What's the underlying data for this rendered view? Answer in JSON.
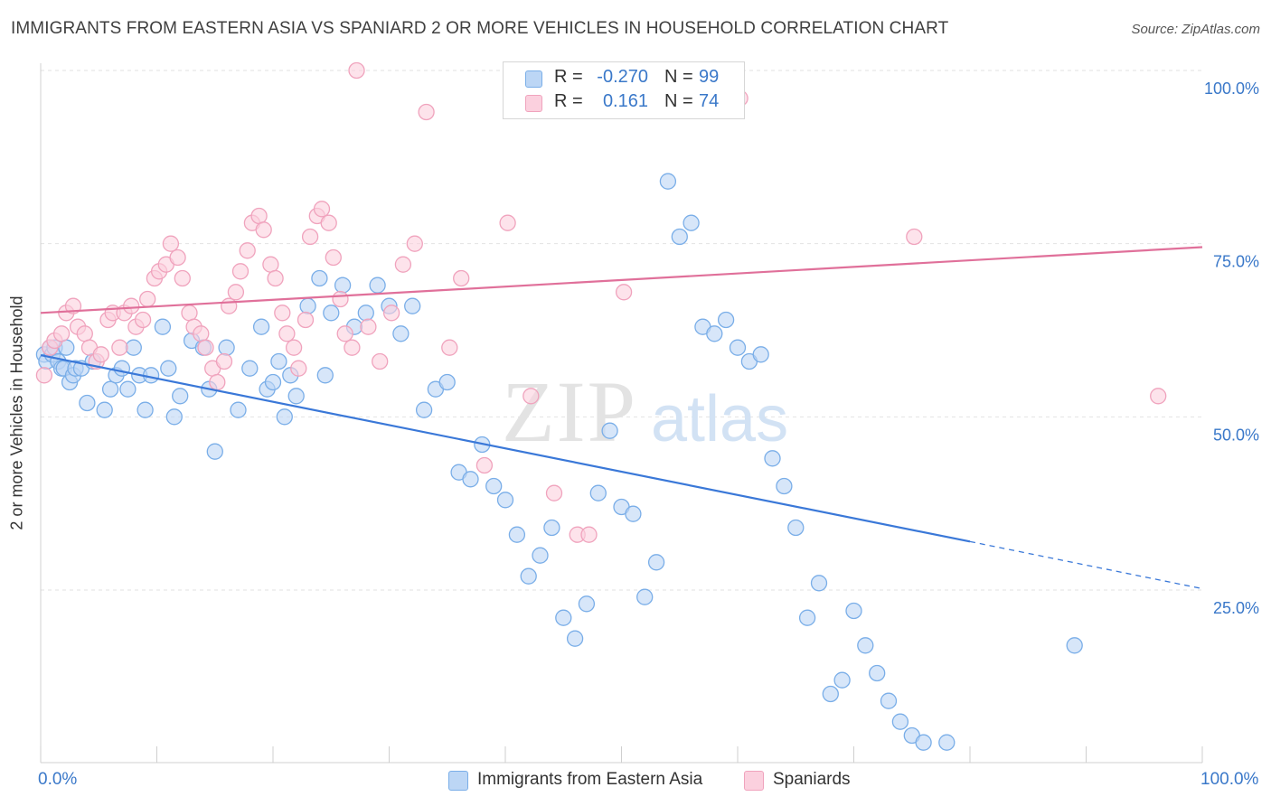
{
  "title": "IMMIGRANTS FROM EASTERN ASIA VS SPANIARD 2 OR MORE VEHICLES IN HOUSEHOLD CORRELATION CHART",
  "source": "Source: ZipAtlas.com",
  "watermark": {
    "zip": "ZIP",
    "atlas": "atlas"
  },
  "legend": {
    "rows": [
      {
        "r_label": "R =",
        "r_value": "-0.270",
        "n_label": "N =",
        "n_value": "99",
        "color": "#7aaee8",
        "fill": "#bcd6f5"
      },
      {
        "r_label": "R =",
        "r_value": "0.161",
        "n_label": "N =",
        "n_value": "74",
        "color": "#f0a3bd",
        "fill": "#fbd0de"
      }
    ]
  },
  "bottom_legend": [
    {
      "label": "Immigrants from Eastern Asia",
      "color": "#7aaee8",
      "fill": "#bcd6f5"
    },
    {
      "label": "Spaniards",
      "color": "#f0a3bd",
      "fill": "#fbd0de"
    }
  ],
  "x_labels": {
    "left": "0.0%",
    "right": "100.0%"
  },
  "chart_data": {
    "type": "scatter",
    "ylabel": "2 or more Vehicles in Household",
    "xlabel": "",
    "xlim": [
      0,
      100
    ],
    "ylim": [
      0,
      102
    ],
    "y_ticks": [
      {
        "value": 25,
        "label": "25.0%"
      },
      {
        "value": 50,
        "label": "50.0%"
      },
      {
        "value": 75,
        "label": "75.0%"
      },
      {
        "value": 100,
        "label": "100.0%"
      }
    ],
    "grid": true,
    "legend_position": "top-center",
    "series": [
      {
        "name": "Immigrants from Eastern Asia",
        "color": "#3a78d8",
        "marker_fill": "#bcd6f5",
        "marker_stroke": "#7aaee8",
        "trend": {
          "x0": 0,
          "y0": 58.9,
          "x1": 80,
          "y1": 32.0,
          "dashed_to": 100,
          "dashed_y": 25.2
        },
        "points": [
          [
            0.3,
            59
          ],
          [
            0.5,
            58
          ],
          [
            0.8,
            60
          ],
          [
            1.0,
            59
          ],
          [
            1.2,
            60
          ],
          [
            1.5,
            58
          ],
          [
            1.8,
            57
          ],
          [
            2.0,
            57
          ],
          [
            2.2,
            60
          ],
          [
            2.5,
            55
          ],
          [
            2.8,
            56
          ],
          [
            3.0,
            57
          ],
          [
            3.5,
            57
          ],
          [
            4.0,
            52
          ],
          [
            4.5,
            58
          ],
          [
            5.5,
            51
          ],
          [
            6.0,
            54
          ],
          [
            6.5,
            56
          ],
          [
            7.0,
            57
          ],
          [
            7.5,
            54
          ],
          [
            8.0,
            60
          ],
          [
            8.5,
            56
          ],
          [
            9.0,
            51
          ],
          [
            9.5,
            56
          ],
          [
            10.5,
            63
          ],
          [
            11,
            57
          ],
          [
            11.5,
            50
          ],
          [
            12,
            53
          ],
          [
            13,
            61
          ],
          [
            14,
            60
          ],
          [
            14.5,
            54
          ],
          [
            15,
            45
          ],
          [
            16,
            60
          ],
          [
            17,
            51
          ],
          [
            18,
            57
          ],
          [
            19,
            63
          ],
          [
            19.5,
            54
          ],
          [
            20,
            55
          ],
          [
            20.5,
            58
          ],
          [
            21,
            50
          ],
          [
            21.5,
            56
          ],
          [
            22,
            53
          ],
          [
            23,
            66
          ],
          [
            24,
            70
          ],
          [
            24.5,
            56
          ],
          [
            25,
            65
          ],
          [
            26,
            69
          ],
          [
            27,
            63
          ],
          [
            28,
            65
          ],
          [
            29,
            69
          ],
          [
            30,
            66
          ],
          [
            31,
            62
          ],
          [
            32,
            66
          ],
          [
            33,
            51
          ],
          [
            34,
            54
          ],
          [
            35,
            55
          ],
          [
            36,
            42
          ],
          [
            37,
            41
          ],
          [
            38,
            46
          ],
          [
            39,
            40
          ],
          [
            40,
            38
          ],
          [
            41,
            33
          ],
          [
            42,
            27
          ],
          [
            43,
            30
          ],
          [
            44,
            34
          ],
          [
            45,
            21
          ],
          [
            46,
            18
          ],
          [
            47,
            23
          ],
          [
            48,
            39
          ],
          [
            49,
            48
          ],
          [
            50,
            37
          ],
          [
            51,
            36
          ],
          [
            52,
            24
          ],
          [
            53,
            29
          ],
          [
            54,
            84
          ],
          [
            55,
            76
          ],
          [
            56,
            78
          ],
          [
            57,
            63
          ],
          [
            58,
            62
          ],
          [
            59,
            64
          ],
          [
            60,
            60
          ],
          [
            61,
            58
          ],
          [
            62,
            59
          ],
          [
            63,
            44
          ],
          [
            64,
            40
          ],
          [
            65,
            34
          ],
          [
            66,
            21
          ],
          [
            67,
            26
          ],
          [
            68,
            10
          ],
          [
            69,
            12
          ],
          [
            70,
            22
          ],
          [
            71,
            17
          ],
          [
            72,
            13
          ],
          [
            73,
            9
          ],
          [
            74,
            6
          ],
          [
            75,
            4
          ],
          [
            76,
            3
          ],
          [
            78,
            3
          ],
          [
            89,
            17
          ]
        ]
      },
      {
        "name": "Spaniards",
        "color": "#e0709a",
        "marker_fill": "#fbd0de",
        "marker_stroke": "#f0a3bd",
        "trend": {
          "x0": 0,
          "y0": 65,
          "x1": 100,
          "y1": 74.5
        },
        "points": [
          [
            0.3,
            56
          ],
          [
            0.8,
            60
          ],
          [
            1.2,
            61
          ],
          [
            1.8,
            62
          ],
          [
            2.2,
            65
          ],
          [
            2.8,
            66
          ],
          [
            3.2,
            63
          ],
          [
            3.8,
            62
          ],
          [
            4.2,
            60
          ],
          [
            4.8,
            58
          ],
          [
            5.2,
            59
          ],
          [
            5.8,
            64
          ],
          [
            6.2,
            65
          ],
          [
            6.8,
            60
          ],
          [
            7.2,
            65
          ],
          [
            7.8,
            66
          ],
          [
            8.2,
            63
          ],
          [
            8.8,
            64
          ],
          [
            9.2,
            67
          ],
          [
            9.8,
            70
          ],
          [
            10.2,
            71
          ],
          [
            10.8,
            72
          ],
          [
            11.2,
            75
          ],
          [
            11.8,
            73
          ],
          [
            12.2,
            70
          ],
          [
            12.8,
            65
          ],
          [
            13.2,
            63
          ],
          [
            13.8,
            62
          ],
          [
            14.2,
            60
          ],
          [
            14.8,
            57
          ],
          [
            15.2,
            55
          ],
          [
            15.8,
            58
          ],
          [
            16.2,
            66
          ],
          [
            16.8,
            68
          ],
          [
            17.2,
            71
          ],
          [
            17.8,
            74
          ],
          [
            18.2,
            78
          ],
          [
            18.8,
            79
          ],
          [
            19.2,
            77
          ],
          [
            19.8,
            72
          ],
          [
            20.2,
            70
          ],
          [
            20.8,
            65
          ],
          [
            21.2,
            62
          ],
          [
            21.8,
            60
          ],
          [
            22.2,
            57
          ],
          [
            22.8,
            64
          ],
          [
            23.2,
            76
          ],
          [
            23.8,
            79
          ],
          [
            24.2,
            80
          ],
          [
            24.8,
            78
          ],
          [
            25.2,
            73
          ],
          [
            25.8,
            67
          ],
          [
            26.2,
            62
          ],
          [
            26.8,
            60
          ],
          [
            27.2,
            100
          ],
          [
            28.2,
            63
          ],
          [
            29.2,
            58
          ],
          [
            30.2,
            65
          ],
          [
            31.2,
            72
          ],
          [
            32.2,
            75
          ],
          [
            33.2,
            94
          ],
          [
            35.2,
            60
          ],
          [
            36.2,
            70
          ],
          [
            38.2,
            43
          ],
          [
            40.2,
            78
          ],
          [
            42.2,
            53
          ],
          [
            44.2,
            39
          ],
          [
            46.2,
            33
          ],
          [
            47.2,
            33
          ],
          [
            50.2,
            68
          ],
          [
            55.2,
            98
          ],
          [
            60.2,
            96
          ],
          [
            75.2,
            76
          ],
          [
            96.2,
            53
          ]
        ]
      }
    ]
  }
}
